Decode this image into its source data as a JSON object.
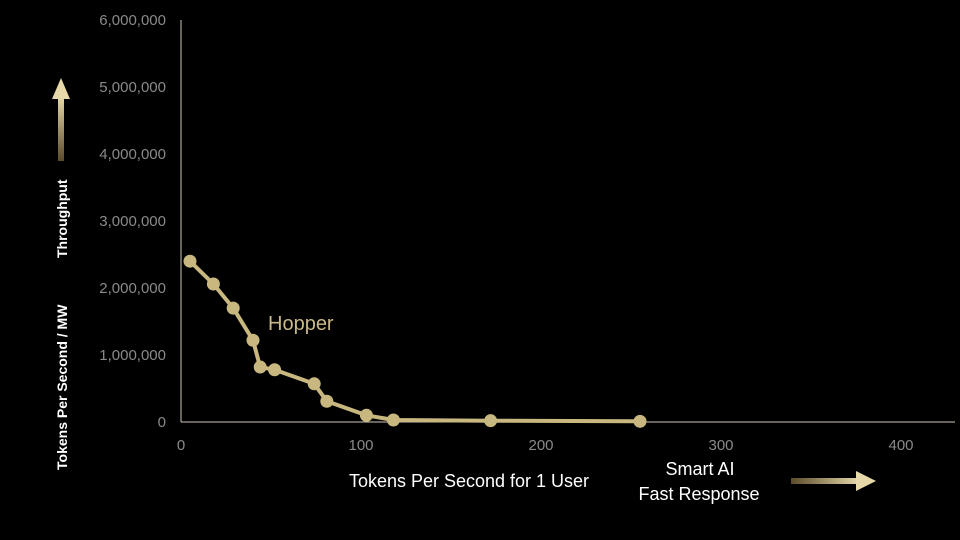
{
  "chart_data": {
    "type": "line",
    "xlabel": "Tokens Per Second for 1 User",
    "ylabel_primary": "Tokens Per Second / MW",
    "ylabel_secondary": "Throughput",
    "xlim": [
      0,
      430
    ],
    "ylim": [
      0,
      6000000
    ],
    "x_ticks": [
      "0",
      "100",
      "200",
      "300",
      "400"
    ],
    "y_ticks": [
      "0",
      "1,000,000",
      "2,000,000",
      "3,000,000",
      "4,000,000",
      "5,000,000",
      "6,000,000"
    ],
    "x_tick_values": [
      0,
      100,
      200,
      300,
      400
    ],
    "y_tick_values": [
      0,
      1000000,
      2000000,
      3000000,
      4000000,
      5000000,
      6000000
    ],
    "grid": false,
    "series": [
      {
        "name": "Hopper",
        "color": "#c8b880",
        "points": [
          {
            "x": 5,
            "y": 2400000
          },
          {
            "x": 18,
            "y": 2060000
          },
          {
            "x": 29,
            "y": 1700000
          },
          {
            "x": 40,
            "y": 1220000
          },
          {
            "x": 44,
            "y": 820000
          },
          {
            "x": 52,
            "y": 780000
          },
          {
            "x": 74,
            "y": 570000
          },
          {
            "x": 81,
            "y": 310000
          },
          {
            "x": 103,
            "y": 100000
          },
          {
            "x": 118,
            "y": 30000
          },
          {
            "x": 172,
            "y": 20000
          },
          {
            "x": 255,
            "y": 10000
          }
        ]
      }
    ],
    "annotation": {
      "line1": "Smart AI",
      "line2": "Fast Response"
    }
  },
  "colors": {
    "background": "#000000",
    "axis": "#cfc8b4",
    "arrow_gold": "#d8c898"
  }
}
